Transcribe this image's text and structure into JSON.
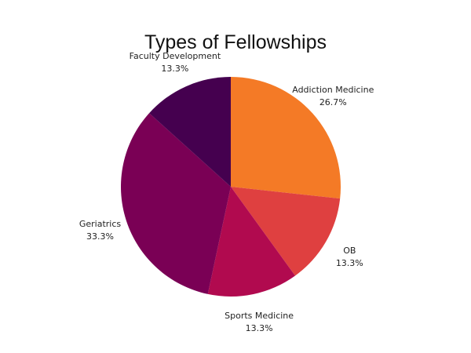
{
  "chart_data": {
    "type": "pie",
    "title": "Types of Fellowships",
    "slices": [
      {
        "label": "Addiction Medicine",
        "value": 26.7,
        "display": "26.7%",
        "color": "#f47a26"
      },
      {
        "label": "OB",
        "value": 13.3,
        "display": "13.3%",
        "color": "#df4040"
      },
      {
        "label": "Sports Medicine",
        "value": 13.3,
        "display": "13.3%",
        "color": "#b10a4f"
      },
      {
        "label": "Geriatrics",
        "value": 33.3,
        "display": "33.3%",
        "color": "#7a0055"
      },
      {
        "label": "Faculty Development",
        "value": 13.3,
        "display": "13.3%",
        "color": "#45004f"
      }
    ],
    "start_angle_deg": 0,
    "direction": "clockwise",
    "legend": "none"
  }
}
